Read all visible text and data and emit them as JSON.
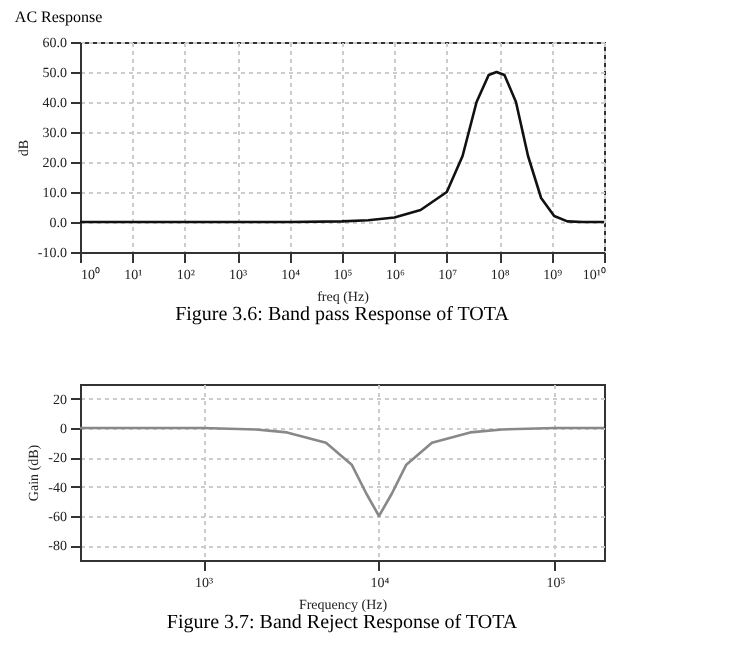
{
  "chart_data": [
    {
      "type": "line",
      "title": "AC Response",
      "xlabel": "freq (Hz)",
      "ylabel": "dB",
      "log": "x",
      "grid": true,
      "line_style": "solid",
      "marker": "none",
      "x": [
        1,
        10000,
        100000,
        316000,
        1000000,
        3160000,
        10000000,
        20000000,
        37000000,
        63000000,
        89000000,
        126000000,
        209000000,
        355000000,
        631000000,
        1120000000,
        2000000000,
        4000000000,
        10000000000
      ],
      "series": [
        {
          "color": "#111111",
          "values": [
            0,
            0,
            0.2,
            0.6,
            1.5,
            4,
            10,
            22,
            40,
            49,
            50,
            49,
            40,
            22,
            8,
            2,
            0.2,
            0,
            0
          ]
        }
      ],
      "xlim": [
        1,
        10000000000
      ],
      "xticks": [
        {
          "value": 1,
          "label": "10⁰"
        },
        {
          "value": 10,
          "label": "10¹"
        },
        {
          "value": 100,
          "label": "10²"
        },
        {
          "value": 1000,
          "label": "10³"
        },
        {
          "value": 10000,
          "label": "10⁴"
        },
        {
          "value": 100000,
          "label": "10⁵"
        },
        {
          "value": 1000000,
          "label": "10⁶"
        },
        {
          "value": 10000000,
          "label": "10⁷"
        },
        {
          "value": 100000000,
          "label": "10⁸"
        },
        {
          "value": 1000000000,
          "label": "10⁹"
        },
        {
          "value": 10000000000,
          "label": "10¹⁰"
        }
      ],
      "ylim": [
        -10,
        60
      ],
      "yticks": [
        {
          "value": -10,
          "label": "-10.0"
        },
        {
          "value": 0,
          "label": "0.0"
        },
        {
          "value": 10,
          "label": "10.0"
        },
        {
          "value": 20,
          "label": "20.0"
        },
        {
          "value": 30,
          "label": "30.0"
        },
        {
          "value": 40,
          "label": "40.0"
        },
        {
          "value": 50,
          "label": "50.0"
        },
        {
          "value": 60,
          "label": "60.0"
        }
      ],
      "annotations": [
        "Figure 3.6: Band pass Response of TOTA"
      ]
    },
    {
      "type": "line",
      "xlabel": "Frequency (Hz)",
      "ylabel": "Gain (dB)",
      "log": "x",
      "grid": true,
      "line_style": "solid",
      "marker": "none",
      "x": [
        200,
        1000,
        2000,
        3000,
        5000,
        7000,
        8500,
        10000,
        11800,
        14300,
        20000,
        33000,
        50000,
        100000,
        190000
      ],
      "series": [
        {
          "color": "#888888",
          "values": [
            0,
            0,
            -1,
            -3,
            -10,
            -25,
            -45,
            -60,
            -45,
            -25,
            -10,
            -3,
            -1,
            0,
            0
          ]
        }
      ],
      "xlim": [
        200,
        190000
      ],
      "xticks": [
        {
          "value": 1000,
          "label": "10³"
        },
        {
          "value": 10000,
          "label": "10⁴"
        },
        {
          "value": 100000,
          "label": "10⁵"
        }
      ],
      "ylim": [
        -90,
        30
      ],
      "yticks": [
        -80,
        -60,
        -40,
        -20,
        0,
        20
      ],
      "annotations": [
        "Figure 3.7: Band Reject Response of TOTA"
      ]
    }
  ]
}
